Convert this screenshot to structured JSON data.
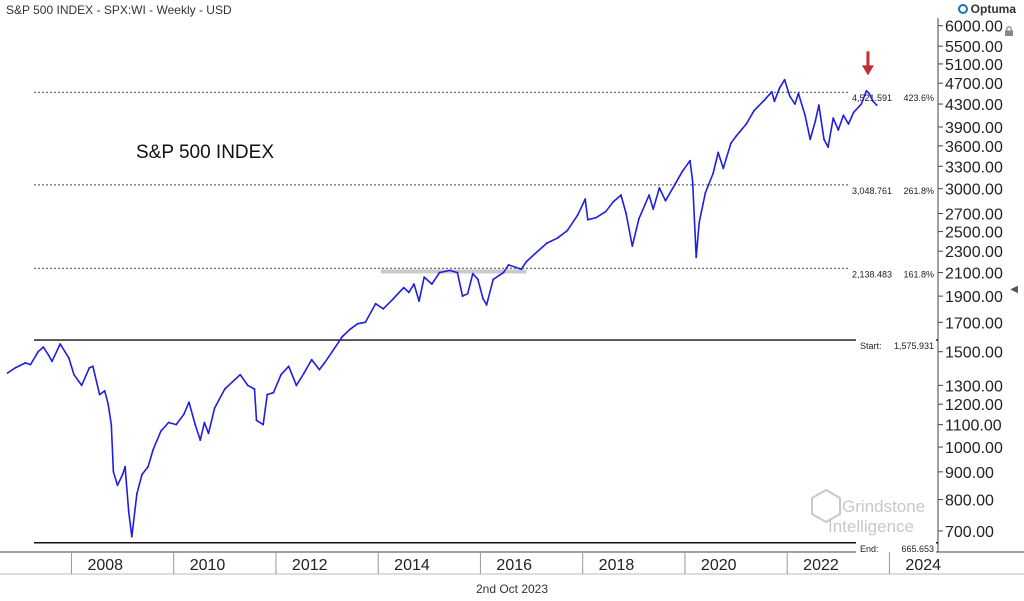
{
  "header": {
    "title": "S&P 500 INDEX - SPX:WI - Weekly - USD",
    "logo": "Optuma",
    "logo_icon": "optuma-logo-icon",
    "lock_icon": "lock-icon",
    "scroll_icon": "scroll-left-icon"
  },
  "footer": {
    "date": "2nd Oct 2023"
  },
  "watermark": {
    "line1": "Grindstone",
    "line2": "Intelligence"
  },
  "colors": {
    "price": "#1f1fe0",
    "axis": "#333333",
    "arrow": "#c03030",
    "levels": "#444444"
  },
  "chart_data": {
    "type": "line",
    "title": "S&P 500 INDEX",
    "scale": "log",
    "ylim": [
      640,
      6200
    ],
    "xlim": [
      2006.72,
      2024.95
    ],
    "x_ticks": [
      "2008",
      "2010",
      "2012",
      "2014",
      "2016",
      "2018",
      "2020",
      "2022",
      "2024"
    ],
    "y_ticks": [
      "700.00",
      "800.00",
      "900.00",
      "1000.00",
      "1100.00",
      "1200.00",
      "1300.00",
      "1500.00",
      "1700.00",
      "1900.00",
      "2100.00",
      "2300.00",
      "2500.00",
      "2700.00",
      "3000.00",
      "3300.00",
      "3600.00",
      "3900.00",
      "4300.00",
      "4700.00",
      "5100.00",
      "5500.00",
      "6000.00"
    ],
    "series": [
      {
        "points": [
          [
            2006.75,
            1370
          ],
          [
            2006.9,
            1400
          ],
          [
            2007.1,
            1430
          ],
          [
            2007.2,
            1420
          ],
          [
            2007.35,
            1500
          ],
          [
            2007.45,
            1530
          ],
          [
            2007.55,
            1480
          ],
          [
            2007.62,
            1440
          ],
          [
            2007.78,
            1550
          ],
          [
            2007.95,
            1460
          ],
          [
            2008.05,
            1360
          ],
          [
            2008.2,
            1300
          ],
          [
            2008.35,
            1400
          ],
          [
            2008.42,
            1410
          ],
          [
            2008.55,
            1250
          ],
          [
            2008.65,
            1270
          ],
          [
            2008.72,
            1200
          ],
          [
            2008.78,
            1100
          ],
          [
            2008.82,
            900
          ],
          [
            2008.9,
            850
          ],
          [
            2009.0,
            890
          ],
          [
            2009.05,
            920
          ],
          [
            2009.12,
            760
          ],
          [
            2009.18,
            683
          ],
          [
            2009.28,
            820
          ],
          [
            2009.38,
            890
          ],
          [
            2009.5,
            920
          ],
          [
            2009.6,
            990
          ],
          [
            2009.75,
            1070
          ],
          [
            2009.9,
            1110
          ],
          [
            2010.05,
            1100
          ],
          [
            2010.2,
            1150
          ],
          [
            2010.3,
            1210
          ],
          [
            2010.42,
            1100
          ],
          [
            2010.52,
            1030
          ],
          [
            2010.6,
            1110
          ],
          [
            2010.68,
            1060
          ],
          [
            2010.8,
            1180
          ],
          [
            2011.0,
            1280
          ],
          [
            2011.15,
            1320
          ],
          [
            2011.3,
            1360
          ],
          [
            2011.45,
            1300
          ],
          [
            2011.58,
            1280
          ],
          [
            2011.62,
            1120
          ],
          [
            2011.75,
            1100
          ],
          [
            2011.83,
            1250
          ],
          [
            2011.95,
            1260
          ],
          [
            2012.1,
            1360
          ],
          [
            2012.25,
            1410
          ],
          [
            2012.4,
            1300
          ],
          [
            2012.55,
            1370
          ],
          [
            2012.7,
            1450
          ],
          [
            2012.85,
            1390
          ],
          [
            2012.95,
            1430
          ],
          [
            2013.1,
            1500
          ],
          [
            2013.3,
            1600
          ],
          [
            2013.45,
            1650
          ],
          [
            2013.6,
            1690
          ],
          [
            2013.75,
            1700
          ],
          [
            2013.95,
            1840
          ],
          [
            2014.1,
            1800
          ],
          [
            2014.3,
            1880
          ],
          [
            2014.5,
            1970
          ],
          [
            2014.6,
            1930
          ],
          [
            2014.7,
            2000
          ],
          [
            2014.8,
            1860
          ],
          [
            2014.9,
            2060
          ],
          [
            2015.05,
            2000
          ],
          [
            2015.2,
            2100
          ],
          [
            2015.4,
            2120
          ],
          [
            2015.55,
            2100
          ],
          [
            2015.65,
            1900
          ],
          [
            2015.75,
            1920
          ],
          [
            2015.85,
            2090
          ],
          [
            2015.95,
            2040
          ],
          [
            2016.05,
            1880
          ],
          [
            2016.12,
            1830
          ],
          [
            2016.25,
            2040
          ],
          [
            2016.45,
            2100
          ],
          [
            2016.55,
            2170
          ],
          [
            2016.8,
            2130
          ],
          [
            2016.9,
            2200
          ],
          [
            2017.1,
            2290
          ],
          [
            2017.3,
            2380
          ],
          [
            2017.5,
            2430
          ],
          [
            2017.7,
            2510
          ],
          [
            2017.9,
            2680
          ],
          [
            2018.05,
            2870
          ],
          [
            2018.1,
            2630
          ],
          [
            2018.25,
            2650
          ],
          [
            2018.45,
            2720
          ],
          [
            2018.6,
            2840
          ],
          [
            2018.75,
            2920
          ],
          [
            2018.85,
            2700
          ],
          [
            2018.97,
            2350
          ],
          [
            2019.1,
            2640
          ],
          [
            2019.3,
            2920
          ],
          [
            2019.38,
            2750
          ],
          [
            2019.5,
            3010
          ],
          [
            2019.62,
            2850
          ],
          [
            2019.8,
            3050
          ],
          [
            2019.95,
            3230
          ],
          [
            2020.1,
            3380
          ],
          [
            2020.15,
            3100
          ],
          [
            2020.22,
            2240
          ],
          [
            2020.28,
            2600
          ],
          [
            2020.4,
            2950
          ],
          [
            2020.55,
            3200
          ],
          [
            2020.65,
            3500
          ],
          [
            2020.75,
            3270
          ],
          [
            2020.9,
            3640
          ],
          [
            2021.0,
            3750
          ],
          [
            2021.2,
            3950
          ],
          [
            2021.35,
            4180
          ],
          [
            2021.55,
            4370
          ],
          [
            2021.7,
            4530
          ],
          [
            2021.75,
            4350
          ],
          [
            2021.85,
            4600
          ],
          [
            2021.95,
            4770
          ],
          [
            2022.05,
            4450
          ],
          [
            2022.15,
            4300
          ],
          [
            2022.22,
            4500
          ],
          [
            2022.35,
            4100
          ],
          [
            2022.45,
            3700
          ],
          [
            2022.55,
            4000
          ],
          [
            2022.62,
            4280
          ],
          [
            2022.72,
            3700
          ],
          [
            2022.8,
            3580
          ],
          [
            2022.9,
            4050
          ],
          [
            2023.0,
            3850
          ],
          [
            2023.1,
            4100
          ],
          [
            2023.2,
            3950
          ],
          [
            2023.3,
            4150
          ],
          [
            2023.45,
            4300
          ],
          [
            2023.55,
            4550
          ],
          [
            2023.6,
            4500
          ],
          [
            2023.68,
            4350
          ],
          [
            2023.75,
            4280
          ]
        ]
      }
    ],
    "levels": [
      {
        "name": "4,521.591",
        "ratio": "423.6%",
        "value": 4521.591,
        "style": "dotted"
      },
      {
        "name": "3,048.761",
        "ratio": "261.8%",
        "value": 3048.761,
        "style": "dotted"
      },
      {
        "name": "2,138.483",
        "ratio": "161.8%",
        "value": 2138.483,
        "style": "dotted"
      },
      {
        "name": "Start:",
        "ratio": "1,575.931",
        "value": 1575.931,
        "style": "solid"
      },
      {
        "name": "End:",
        "ratio": "665.653",
        "value": 665.653,
        "style": "solid"
      }
    ],
    "highlight_band": {
      "x_from": 2014.05,
      "x_to": 2016.9,
      "value": 2110
    },
    "marker": {
      "type": "down-arrow",
      "x": 2023.58,
      "value": 4900
    }
  }
}
